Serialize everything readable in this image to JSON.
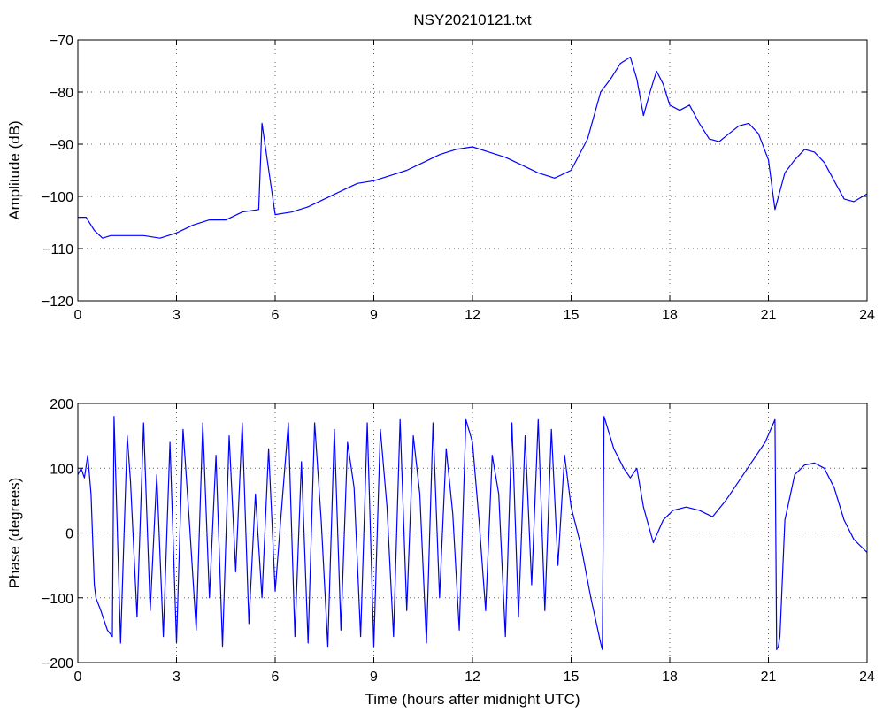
{
  "chart_data": [
    {
      "type": "line",
      "title": "NSY20210121.txt",
      "xlabel": "",
      "ylabel": "Amplitude (dB)",
      "xlim": [
        0,
        24
      ],
      "ylim": [
        -120,
        -70
      ],
      "xticks": [
        0,
        3,
        6,
        9,
        12,
        15,
        18,
        21,
        24
      ],
      "xtick_labels": [
        "0",
        "3",
        "6",
        "9",
        "12",
        "15",
        "18",
        "21",
        "24"
      ],
      "yticks": [
        -120,
        -110,
        -100,
        -90,
        -80,
        -70
      ],
      "ytick_labels": [
        "−120",
        "−110",
        "−100",
        "−90",
        "−80",
        "−70"
      ],
      "grid": true,
      "series_color": "#0000ff",
      "series": [
        {
          "name": "",
          "x": [
            0,
            0.25,
            0.5,
            0.75,
            1,
            1.5,
            2,
            2.5,
            3,
            3.5,
            4,
            4.5,
            5,
            5.5,
            5.6,
            6,
            6.5,
            7,
            7.5,
            8,
            8.5,
            9,
            9.5,
            10,
            10.5,
            11,
            11.5,
            12,
            12.5,
            13,
            13.5,
            14,
            14.5,
            15,
            15.5,
            15.9,
            16.2,
            16.5,
            16.8,
            17,
            17.2,
            17.4,
            17.6,
            17.8,
            18,
            18.3,
            18.6,
            18.9,
            19.2,
            19.5,
            19.8,
            20.1,
            20.4,
            20.7,
            21,
            21.2,
            21.5,
            21.8,
            22.1,
            22.4,
            22.7,
            23,
            23.3,
            23.6,
            24
          ],
          "values": [
            -104,
            -104,
            -106.5,
            -108,
            -107.5,
            -107.5,
            -107.5,
            -108,
            -107,
            -105.5,
            -104.5,
            -104.5,
            -103,
            -102.5,
            -86,
            -103.5,
            -103,
            -102,
            -100.5,
            -99,
            -97.5,
            -97,
            -96,
            -95,
            -93.5,
            -92,
            -91,
            -90.5,
            -91.5,
            -92.5,
            -94,
            -95.5,
            -96.5,
            -95,
            -89,
            -80,
            -77.5,
            -74.5,
            -73.3,
            -77.5,
            -84.5,
            -80,
            -76,
            -78.5,
            -82.5,
            -83.5,
            -82.5,
            -86,
            -89,
            -89.5,
            -88,
            -86.5,
            -86,
            -88,
            -93,
            -102.5,
            -95.5,
            -93,
            -91,
            -91.5,
            -93.5,
            -97,
            -100.5,
            -101,
            -99.5
          ]
        }
      ]
    },
    {
      "type": "line",
      "title": "",
      "xlabel": "Time (hours after midnight UTC)",
      "ylabel": "Phase (degrees)",
      "xlim": [
        0,
        24
      ],
      "ylim": [
        -200,
        200
      ],
      "xticks": [
        0,
        3,
        6,
        9,
        12,
        15,
        18,
        21,
        24
      ],
      "xtick_labels": [
        "0",
        "3",
        "6",
        "9",
        "12",
        "15",
        "18",
        "21",
        "24"
      ],
      "yticks": [
        -200,
        -100,
        0,
        100,
        200
      ],
      "ytick_labels": [
        "−200",
        "−100",
        "0",
        "100",
        "200"
      ],
      "grid": true,
      "series_color": "#0000ff",
      "series": [
        {
          "name": "",
          "x": [
            0,
            0.1,
            0.2,
            0.3,
            0.4,
            0.5,
            0.55,
            0.7,
            0.9,
            1.05,
            1.1,
            1.3,
            1.5,
            1.6,
            1.8,
            2.0,
            2.2,
            2.4,
            2.6,
            2.8,
            3.0,
            3.2,
            3.4,
            3.6,
            3.8,
            4.0,
            4.2,
            4.4,
            4.6,
            4.8,
            5.0,
            5.2,
            5.4,
            5.6,
            5.8,
            6.0,
            6.2,
            6.4,
            6.6,
            6.8,
            7.0,
            7.2,
            7.4,
            7.6,
            7.8,
            8.0,
            8.2,
            8.4,
            8.6,
            8.8,
            9.0,
            9.2,
            9.4,
            9.6,
            9.8,
            10.0,
            10.2,
            10.4,
            10.6,
            10.8,
            11.0,
            11.2,
            11.4,
            11.6,
            11.8,
            12.0,
            12.2,
            12.4,
            12.6,
            12.8,
            13.0,
            13.2,
            13.4,
            13.6,
            13.8,
            14.0,
            14.2,
            14.4,
            14.6,
            14.8,
            15.0,
            15.3,
            15.6,
            15.9,
            15.95,
            16.0,
            16.3,
            16.6,
            16.8,
            17.0,
            17.2,
            17.5,
            17.8,
            18.1,
            18.5,
            18.9,
            19.3,
            19.7,
            20.1,
            20.5,
            20.9,
            21.2,
            21.25,
            21.3,
            21.35,
            21.5,
            21.8,
            22.1,
            22.4,
            22.7,
            23.0,
            23.3,
            23.6,
            24
          ],
          "values": [
            90,
            100,
            85,
            120,
            60,
            -80,
            -100,
            -120,
            -150,
            -160,
            180,
            -170,
            150,
            80,
            -130,
            170,
            -120,
            90,
            -160,
            140,
            -170,
            160,
            10,
            -150,
            170,
            -100,
            120,
            -175,
            150,
            -60,
            170,
            -140,
            60,
            -100,
            130,
            -90,
            40,
            170,
            -160,
            110,
            -170,
            170,
            20,
            -175,
            160,
            -150,
            140,
            70,
            -160,
            170,
            -175,
            160,
            40,
            -160,
            175,
            -120,
            150,
            60,
            -170,
            170,
            -100,
            130,
            30,
            -150,
            175,
            140,
            20,
            -120,
            120,
            60,
            -160,
            170,
            -130,
            150,
            -80,
            175,
            -120,
            160,
            -50,
            120,
            40,
            -20,
            -100,
            -170,
            -180,
            180,
            130,
            100,
            85,
            100,
            40,
            -15,
            20,
            35,
            40,
            35,
            25,
            50,
            80,
            110,
            140,
            175,
            -180,
            -175,
            -160,
            20,
            90,
            105,
            108,
            100,
            70,
            20,
            -10,
            -30
          ]
        }
      ]
    }
  ]
}
